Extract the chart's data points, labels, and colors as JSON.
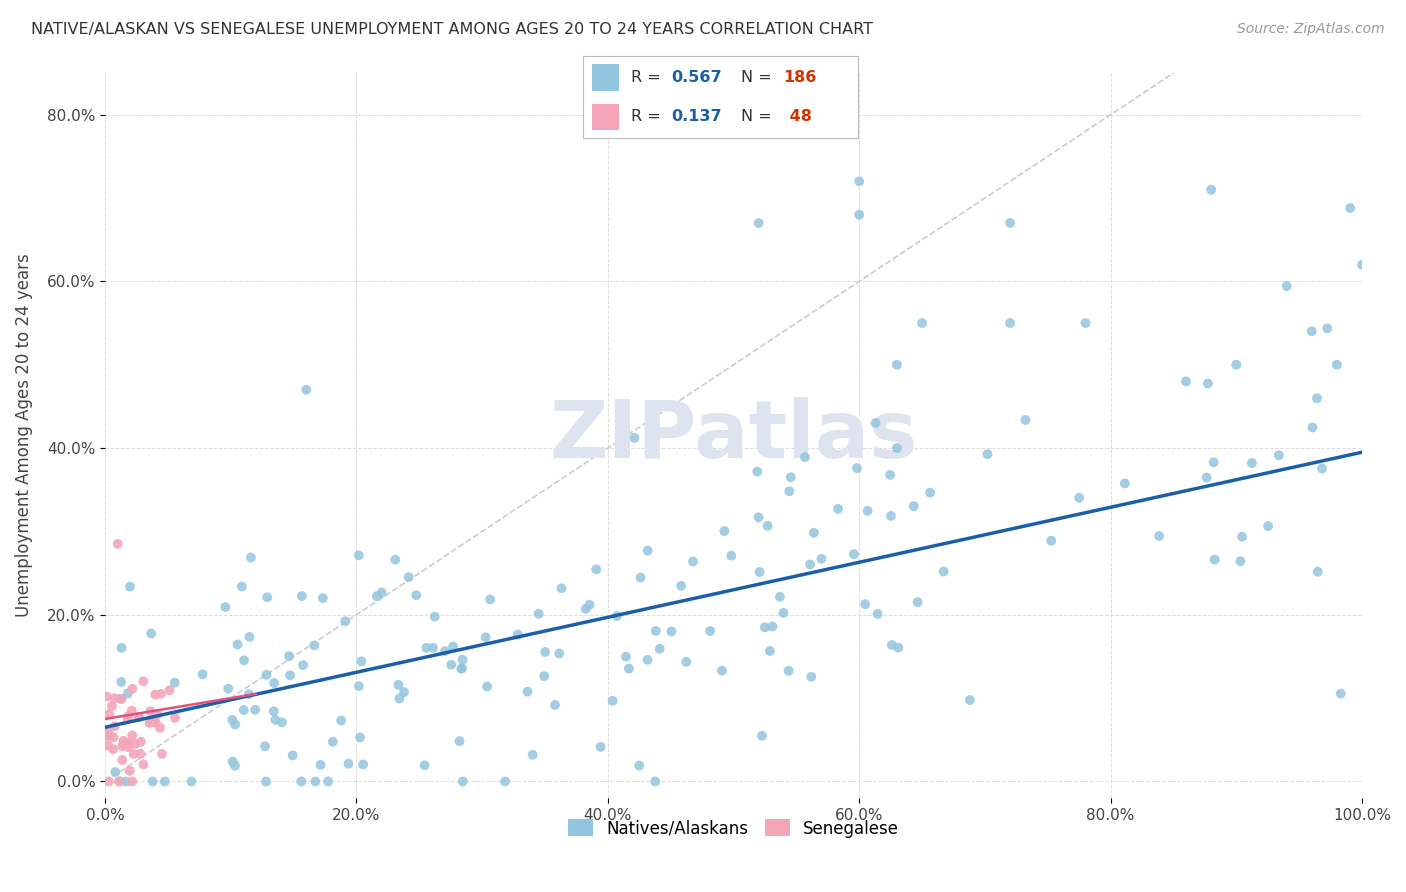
{
  "title": "NATIVE/ALASKAN VS SENEGALESE UNEMPLOYMENT AMONG AGES 20 TO 24 YEARS CORRELATION CHART",
  "source": "Source: ZipAtlas.com",
  "ylabel": "Unemployment Among Ages 20 to 24 years",
  "xlim": [
    0,
    1.0
  ],
  "ylim": [
    -0.02,
    0.85
  ],
  "xticks": [
    0.0,
    0.2,
    0.4,
    0.6,
    0.8,
    1.0
  ],
  "yticks": [
    0.0,
    0.2,
    0.4,
    0.6,
    0.8
  ],
  "xtick_labels": [
    "0.0%",
    "20.0%",
    "40.0%",
    "60.0%",
    "80.0%",
    "100.0%"
  ],
  "ytick_labels": [
    "0.0%",
    "20.0%",
    "40.0%",
    "60.0%",
    "80.0%"
  ],
  "blue_color": "#92c5de",
  "pink_color": "#f4a5b8",
  "blue_line_color": "#1a5fa8",
  "diagonal_color": "#cccccc",
  "watermark": "ZIPatlas",
  "watermark_color": "#dde4ef",
  "background_color": "#ffffff",
  "grid_color": "#dddddd",
  "blue_fit_x": [
    0.0,
    1.0
  ],
  "blue_fit_y": [
    0.065,
    0.395
  ],
  "pink_fit_x": [
    0.0,
    0.12
  ],
  "pink_fit_y": [
    0.075,
    0.105
  ]
}
